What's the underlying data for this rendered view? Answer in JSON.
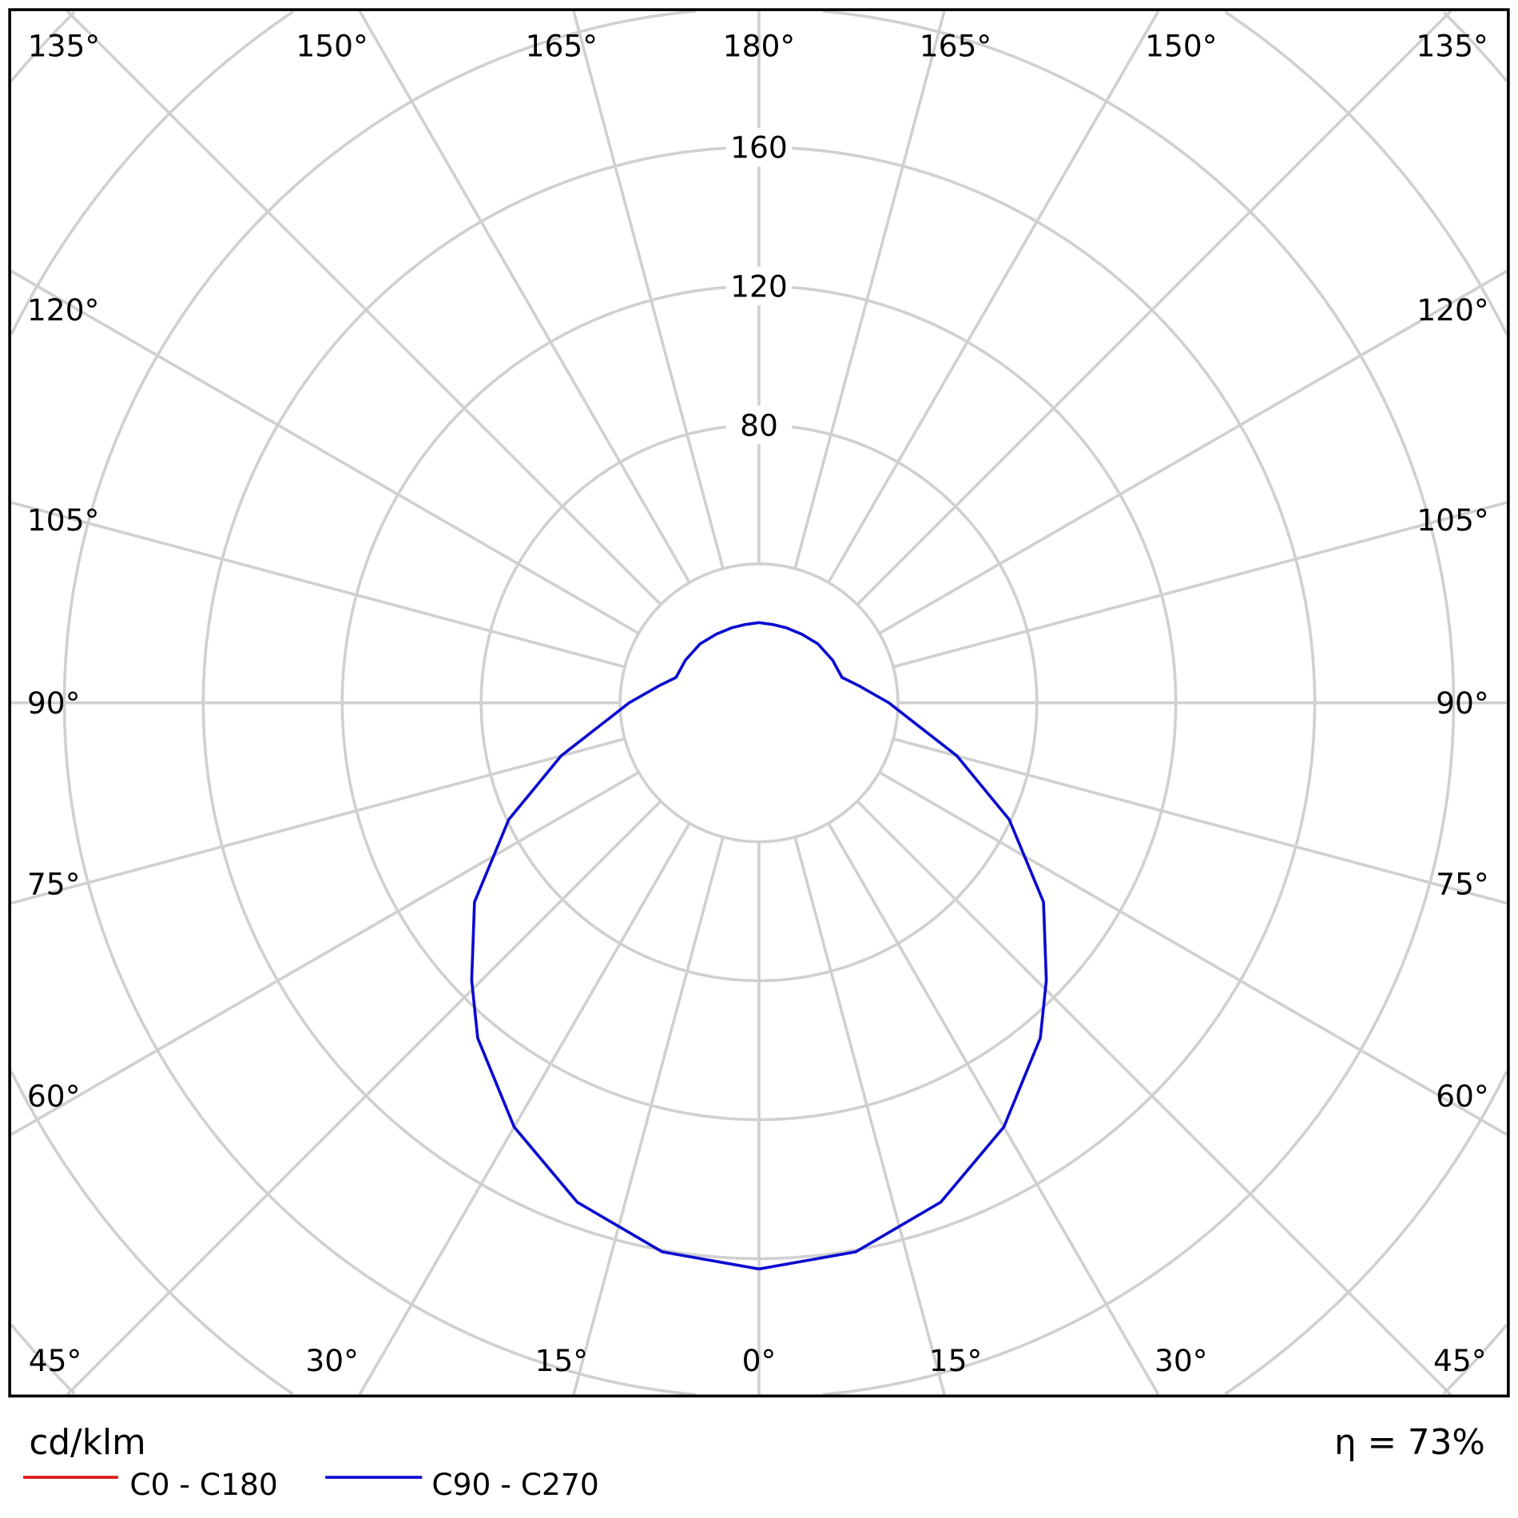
{
  "chart_data": {
    "type": "polar-line",
    "unit_label": "cd/klm",
    "efficiency_label": "η = 73%",
    "radial_ticks": [
      80,
      120,
      160
    ],
    "radial_rings": [
      40,
      80,
      120,
      160,
      200,
      240,
      280
    ],
    "angle_step_deg": 15,
    "angle_labels": {
      "top": [
        "135°",
        "150°",
        "165°",
        "180°",
        "165°",
        "150°",
        "135°"
      ],
      "left": [
        "120°",
        "105°",
        "90°",
        "75°",
        "60°"
      ],
      "right": [
        "120°",
        "105°",
        "90°",
        "75°",
        "60°"
      ],
      "bottom": [
        "45°",
        "30°",
        "15°",
        "0°",
        "15°",
        "30°",
        "45°"
      ]
    },
    "grid": true,
    "legend_placement": "bottom-left",
    "series": [
      {
        "name": "C0 - C180",
        "color": "#e01010",
        "angles": [],
        "values": []
      },
      {
        "name": "C90 - C270",
        "color": "#0a0ad0",
        "angles": [
          0,
          10,
          20,
          30,
          40,
          46,
          55,
          65,
          75,
          90,
          100,
          107,
          120,
          135,
          148,
          160,
          170,
          180
        ],
        "values": [
          163,
          160.5,
          153,
          141,
          126,
          115,
          100,
          79.5,
          59,
          37.4,
          29,
          25,
          24.5,
          24,
          23.3,
          23,
          22.9,
          23.1
        ]
      }
    ]
  }
}
